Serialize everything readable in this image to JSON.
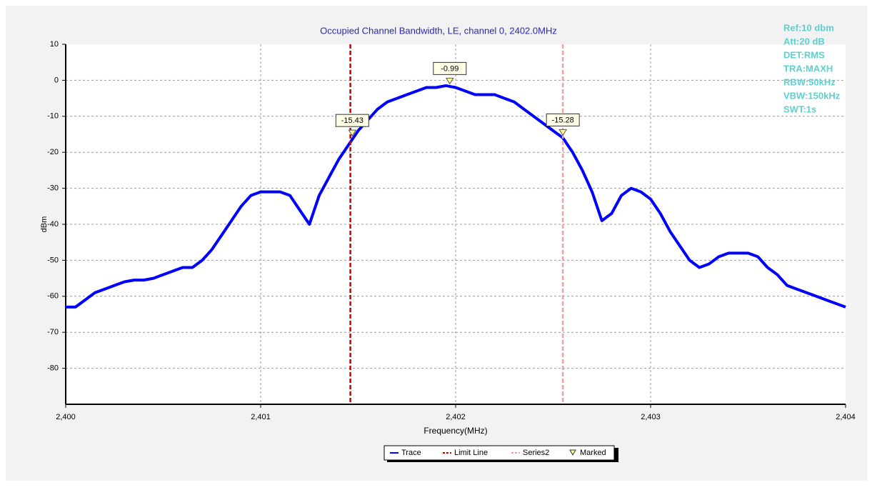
{
  "chart_data": {
    "type": "line",
    "title": "Occupied Channel Bandwidth, LE, channel 0, 2402.0MHz",
    "xlabel": "Frequency(MHz)",
    "ylabel": "dBm",
    "xlim": [
      2400,
      2404
    ],
    "xticks": [
      {
        "value": 2400,
        "label": "2,400"
      },
      {
        "value": 2401,
        "label": "2,401"
      },
      {
        "value": 2402,
        "label": "2,402"
      },
      {
        "value": 2403,
        "label": "2,403"
      },
      {
        "value": 2404,
        "label": "2,404"
      }
    ],
    "ylim": [
      -90,
      10
    ],
    "yticks": [
      10,
      0,
      -10,
      -20,
      -30,
      -40,
      -50,
      -60,
      -70,
      -80
    ],
    "grid": true,
    "legend": "bottom",
    "annotations": [
      "Ref:10 dbm",
      "Att:20 dB",
      "DET:RMS",
      "TRA:MAXH",
      "RBW:50kHz",
      "VBW:150kHz",
      "SWT:1s"
    ],
    "series": [
      {
        "name": "Trace",
        "color": "#0000ff",
        "x": [
          2400.0,
          2400.05,
          2400.1,
          2400.15,
          2400.2,
          2400.25,
          2400.3,
          2400.35,
          2400.4,
          2400.45,
          2400.5,
          2400.55,
          2400.6,
          2400.65,
          2400.7,
          2400.75,
          2400.8,
          2400.85,
          2400.9,
          2400.95,
          2401.0,
          2401.05,
          2401.1,
          2401.15,
          2401.2,
          2401.25,
          2401.3,
          2401.35,
          2401.4,
          2401.45,
          2401.5,
          2401.55,
          2401.6,
          2401.65,
          2401.7,
          2401.75,
          2401.8,
          2401.85,
          2401.9,
          2401.95,
          2402.0,
          2402.05,
          2402.1,
          2402.15,
          2402.2,
          2402.25,
          2402.3,
          2402.35,
          2402.4,
          2402.45,
          2402.5,
          2402.55,
          2402.6,
          2402.65,
          2402.7,
          2402.75,
          2402.8,
          2402.85,
          2402.9,
          2402.95,
          2403.0,
          2403.05,
          2403.1,
          2403.15,
          2403.2,
          2403.25,
          2403.3,
          2403.35,
          2403.4,
          2403.45,
          2403.5,
          2403.55,
          2403.6,
          2403.65,
          2403.7,
          2403.75,
          2403.8,
          2403.85,
          2403.9,
          2403.95,
          2404.0
        ],
        "values": [
          -63,
          -63,
          -61,
          -59,
          -58,
          -57,
          -56,
          -55.5,
          -55.5,
          -55,
          -54,
          -53,
          -52,
          -52,
          -50,
          -47,
          -43,
          -39,
          -35,
          -32,
          -31,
          -31,
          -31,
          -32,
          -36,
          -40,
          -32,
          -27,
          -22,
          -18,
          -14,
          -11,
          -8,
          -6,
          -5,
          -4,
          -3,
          -2,
          -2,
          -1.5,
          -2,
          -3,
          -4,
          -4,
          -4,
          -5,
          -6,
          -8,
          -10,
          -12,
          -14,
          -16,
          -20,
          -25,
          -31,
          -39,
          -37,
          -32,
          -30,
          -31,
          -33,
          -37,
          -42,
          -46,
          -50,
          -52,
          -51,
          -49,
          -48,
          -48,
          -48,
          -49,
          -52,
          -54,
          -57,
          -58,
          -59,
          -60,
          -61,
          -62,
          -63
        ]
      },
      {
        "name": "Limit Line",
        "color": "#cc0000",
        "x": 2401.46
      },
      {
        "name": "Series2",
        "color": "#f4a0a0",
        "x": 2402.55
      },
      {
        "name": "Marked",
        "color": "#ffff99",
        "x": [
          2401.47,
          2401.97,
          2402.55
        ],
        "values": [
          -15.43,
          -0.99,
          -15.28
        ]
      }
    ]
  }
}
